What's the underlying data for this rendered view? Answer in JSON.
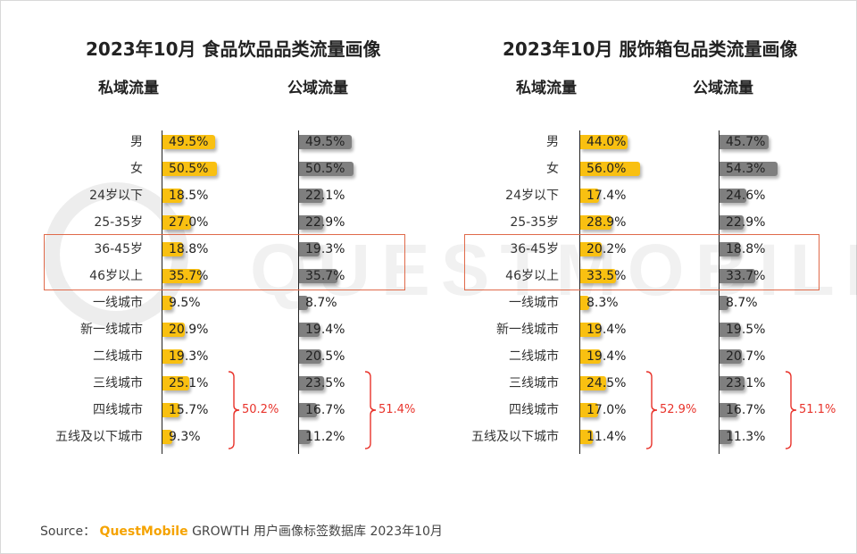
{
  "watermark": "QUESTMOBILE",
  "source": {
    "prefix": "Source：",
    "brand": "QuestMobile",
    "text": "GROWTH 用户画像标签数据库 2023年10月"
  },
  "colors": {
    "private": "#f9c011",
    "public": "#7f7f7f",
    "highlight": "#e06a4a",
    "brace": "#e8332b"
  },
  "chart_data": [
    {
      "type": "bar",
      "title": "2023年10月 食品饮品品类流量画像",
      "categories": [
        "男",
        "女",
        "24岁以下",
        "25-35岁",
        "36-45岁",
        "46岁以上",
        "一线城市",
        "新一线城市",
        "二线城市",
        "三线城市",
        "四线城市",
        "五线及以下城市"
      ],
      "series": [
        {
          "name": "私域流量",
          "values": [
            49.5,
            50.5,
            18.5,
            27.0,
            18.8,
            35.7,
            9.5,
            20.9,
            19.3,
            25.1,
            15.7,
            9.3
          ],
          "labels": [
            "49.5%",
            "50.5%",
            "18.5%",
            "27.0%",
            "18.8%",
            "35.7%",
            "9.5%",
            "20.9%",
            "19.3%",
            "25.1%",
            "15.7%",
            "9.3%"
          ]
        },
        {
          "name": "公域流量",
          "values": [
            49.5,
            50.5,
            22.1,
            22.9,
            19.3,
            35.7,
            8.7,
            19.4,
            20.5,
            23.5,
            16.7,
            11.2
          ],
          "labels": [
            "49.5%",
            "50.5%",
            "22.1%",
            "22.9%",
            "19.3%",
            "35.7%",
            "8.7%",
            "19.4%",
            "20.5%",
            "23.5%",
            "16.7%",
            "11.2%"
          ]
        }
      ],
      "braces": [
        {
          "series": "私域流量",
          "label": "50.2%"
        },
        {
          "series": "公域流量",
          "label": "51.4%"
        }
      ],
      "highlight_rows": [
        "36-45岁",
        "46岁以上"
      ],
      "max_value": 56
    },
    {
      "type": "bar",
      "title": "2023年10月 服饰箱包品类流量画像",
      "categories": [
        "男",
        "女",
        "24岁以下",
        "25-35岁",
        "36-45岁",
        "46岁以上",
        "一线城市",
        "新一线城市",
        "二线城市",
        "三线城市",
        "四线城市",
        "五线及以下城市"
      ],
      "series": [
        {
          "name": "私域流量",
          "values": [
            44.0,
            56.0,
            17.4,
            28.9,
            20.2,
            33.5,
            8.3,
            19.4,
            19.4,
            24.5,
            17.0,
            11.4
          ],
          "labels": [
            "44.0%",
            "56.0%",
            "17.4%",
            "28.9%",
            "20.2%",
            "33.5%",
            "8.3%",
            "19.4%",
            "19.4%",
            "24.5%",
            "17.0%",
            "11.4%"
          ]
        },
        {
          "name": "公域流量",
          "values": [
            45.7,
            54.3,
            24.6,
            22.9,
            18.8,
            33.7,
            8.7,
            19.5,
            20.7,
            23.1,
            16.7,
            11.3
          ],
          "labels": [
            "45.7%",
            "54.3%",
            "24.6%",
            "22.9%",
            "18.8%",
            "33.7%",
            "8.7%",
            "19.5%",
            "20.7%",
            "23.1%",
            "16.7%",
            "11.3%"
          ]
        }
      ],
      "braces": [
        {
          "series": "私域流量",
          "label": "52.9%"
        },
        {
          "series": "公域流量",
          "label": "51.1%"
        }
      ],
      "highlight_rows": [
        "36-45岁",
        "46岁以上"
      ],
      "max_value": 56
    }
  ]
}
